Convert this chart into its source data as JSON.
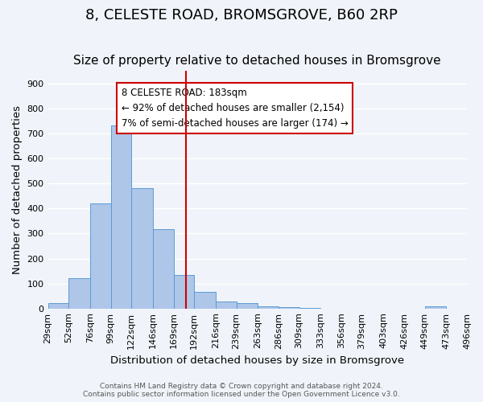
{
  "title": "8, CELESTE ROAD, BROMSGROVE, B60 2RP",
  "subtitle": "Size of property relative to detached houses in Bromsgrove",
  "xlabel": "Distribution of detached houses by size in Bromsgrove",
  "ylabel": "Number of detached properties",
  "bar_edges": [
    29,
    52,
    76,
    99,
    122,
    146,
    169,
    192,
    216,
    239,
    263,
    286,
    309,
    333,
    356,
    379,
    403,
    426,
    449,
    473,
    496
  ],
  "bar_heights": [
    20,
    122,
    420,
    733,
    483,
    317,
    133,
    65,
    27,
    20,
    10,
    5,
    2,
    0,
    0,
    0,
    0,
    0,
    8,
    0
  ],
  "bar_color": "#aec6e8",
  "bar_edgecolor": "#5b9bd5",
  "vline_color": "#cc0000",
  "vline_x": 183,
  "annotation_text": "8 CELESTE ROAD: 183sqm\n← 92% of detached houses are smaller (2,154)\n7% of semi-detached houses are larger (174) →",
  "annotation_box_color": "#ffffff",
  "annotation_box_edgecolor": "#cc0000",
  "ylim": [
    0,
    950
  ],
  "yticks": [
    0,
    100,
    200,
    300,
    400,
    500,
    600,
    700,
    800,
    900
  ],
  "footer_line1": "Contains HM Land Registry data © Crown copyright and database right 2024.",
  "footer_line2": "Contains public sector information licensed under the Open Government Licence v3.0.",
  "bg_color": "#f0f4fa",
  "grid_color": "#ffffff",
  "title_fontsize": 13,
  "subtitle_fontsize": 11,
  "axis_label_fontsize": 9.5,
  "tick_fontsize": 8,
  "annotation_fontsize": 8.5,
  "footer_fontsize": 6.5
}
